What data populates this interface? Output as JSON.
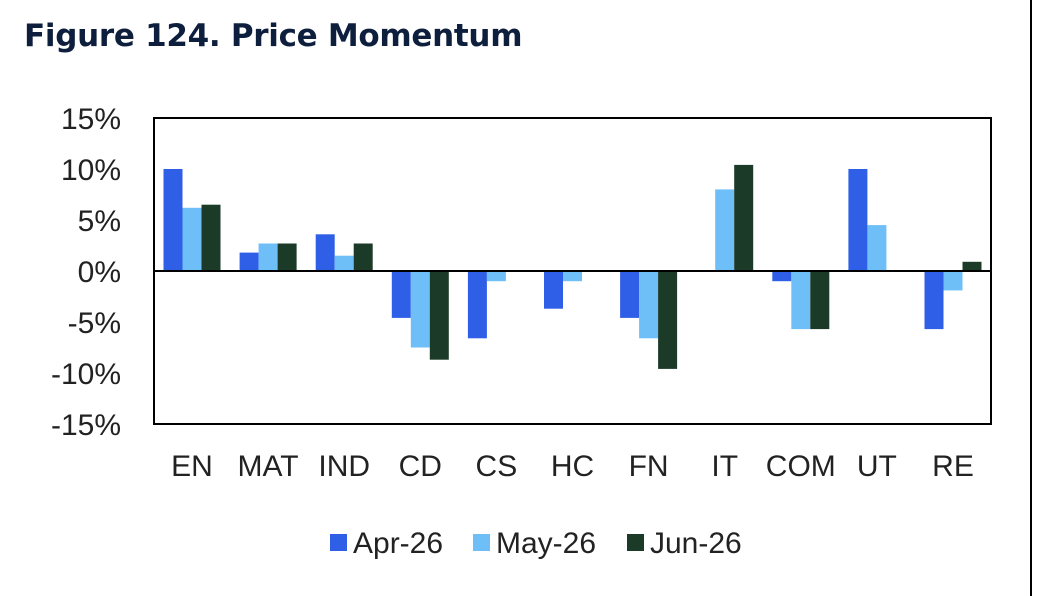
{
  "figure_title": "Figure 124. Price Momentum",
  "chart_data": {
    "type": "bar",
    "title": "Figure 124. Price Momentum",
    "categories": [
      "EN",
      "MAT",
      "IND",
      "CD",
      "CS",
      "HC",
      "FN",
      "IT",
      "COM",
      "UT",
      "RE"
    ],
    "series": [
      {
        "name": "Apr-26",
        "color": "#2f5fe6",
        "values": [
          10.0,
          1.8,
          3.6,
          -4.6,
          -6.6,
          -3.7,
          -4.6,
          0.0,
          -1.0,
          10.0,
          -5.7
        ]
      },
      {
        "name": "May-26",
        "color": "#6ebff7",
        "values": [
          6.2,
          2.7,
          1.5,
          -7.5,
          -1.0,
          -1.0,
          -6.6,
          8.0,
          -5.7,
          4.5,
          -1.9
        ]
      },
      {
        "name": "Jun-26",
        "color": "#1b3a28",
        "values": [
          6.5,
          2.7,
          2.7,
          -8.7,
          0.0,
          0.0,
          -9.6,
          10.4,
          -5.7,
          0.0,
          0.9
        ]
      }
    ],
    "y_ticks": [
      "15%",
      "10%",
      "5%",
      "0%",
      "-5%",
      "-10%",
      "-15%"
    ],
    "ylim": [
      -15,
      15
    ],
    "ytick_step": 5,
    "xlabel": "",
    "ylabel": "",
    "grid": false,
    "legend_position": "bottom"
  }
}
